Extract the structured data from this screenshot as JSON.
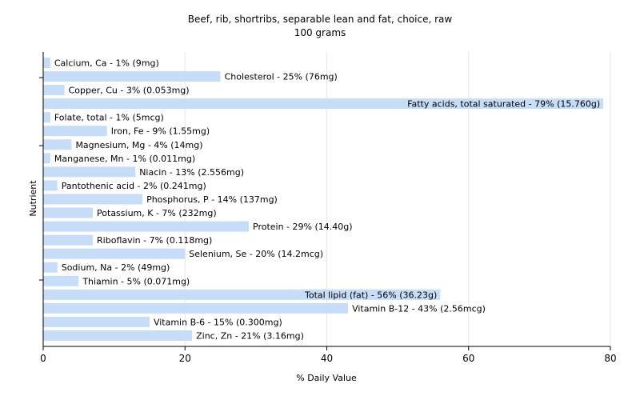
{
  "chart_data": {
    "type": "bar",
    "orientation": "horizontal",
    "title": "Beef, rib, shortribs, separable lean and fat, choice, raw",
    "subtitle": "100 grams",
    "xlabel": "% Daily Value",
    "ylabel": "Nutrient",
    "xlim": [
      0,
      80
    ],
    "xticks": [
      0,
      20,
      40,
      60,
      80
    ],
    "grid": true,
    "bar_color": "#c6dcf7",
    "categories": [
      "Calcium, Ca",
      "Cholesterol",
      "Copper, Cu",
      "Fatty acids, total saturated",
      "Folate, total",
      "Iron, Fe",
      "Magnesium, Mg",
      "Manganese, Mn",
      "Niacin",
      "Pantothenic acid",
      "Phosphorus, P",
      "Potassium, K",
      "Protein",
      "Riboflavin",
      "Selenium, Se",
      "Sodium, Na",
      "Thiamin",
      "Total lipid (fat)",
      "Vitamin B-12",
      "Vitamin B-6",
      "Zinc, Zn"
    ],
    "values": [
      1,
      25,
      3,
      79,
      1,
      9,
      4,
      1,
      13,
      2,
      14,
      7,
      29,
      7,
      20,
      2,
      5,
      56,
      43,
      15,
      21
    ],
    "labels": [
      "Calcium, Ca - 1% (9mg)",
      "Cholesterol - 25% (76mg)",
      "Copper, Cu - 3% (0.053mg)",
      "Fatty acids, total saturated - 79% (15.760g)",
      "Folate, total - 1% (5mcg)",
      "Iron, Fe - 9% (1.55mg)",
      "Magnesium, Mg - 4% (14mg)",
      "Manganese, Mn - 1% (0.011mg)",
      "Niacin - 13% (2.556mg)",
      "Pantothenic acid - 2% (0.241mg)",
      "Phosphorus, P - 14% (137mg)",
      "Potassium, K - 7% (232mg)",
      "Protein - 29% (14.40g)",
      "Riboflavin - 7% (0.118mg)",
      "Selenium, Se - 20% (14.2mcg)",
      "Sodium, Na - 2% (49mg)",
      "Thiamin - 5% (0.071mg)",
      "Total lipid (fat) - 56% (36.23g)",
      "Vitamin B-12 - 43% (2.56mcg)",
      "Vitamin B-6 - 15% (0.300mg)",
      "Zinc, Zn - 21% (3.16mg)"
    ]
  }
}
